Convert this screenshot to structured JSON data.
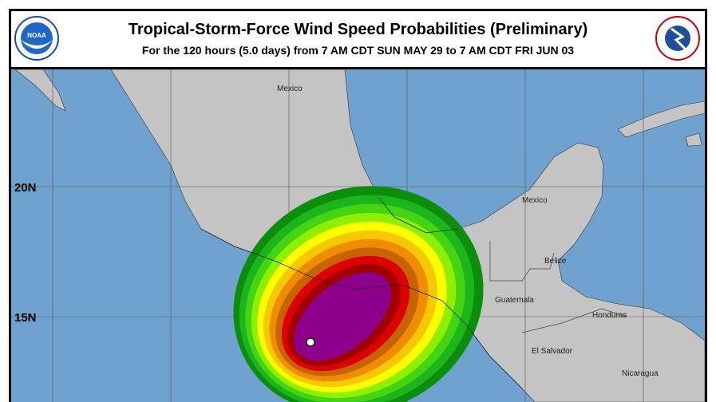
{
  "header": {
    "title": "Tropical-Storm-Force Wind Speed Probabilities (Preliminary)",
    "subtitle": "For the 120 hours (5.0 days) from 7 AM CDT SUN MAY 29 to 7 AM CDT FRI JUN 03",
    "left_logo": "NOAA",
    "right_logo": "NATIONAL WEATHER SERVICE"
  },
  "map": {
    "latitude_labels": [
      "20N",
      "15N"
    ],
    "country_labels": [
      "Mexico",
      "Mexico",
      "Belize",
      "Guatemala",
      "Honduras",
      "El Salvador",
      "Nicaragua"
    ],
    "colors": {
      "ocean": "#6fa2cf",
      "land": "#c4c4c4",
      "probability_bands": [
        "#0b8f0b",
        "#1cb51c",
        "#44d414",
        "#8ef000",
        "#ffff00",
        "#f5c800",
        "#f08c00",
        "#c86400",
        "#dc0000",
        "#a00000",
        "#8c008c"
      ]
    },
    "storm_position_marker": "white-circle"
  }
}
